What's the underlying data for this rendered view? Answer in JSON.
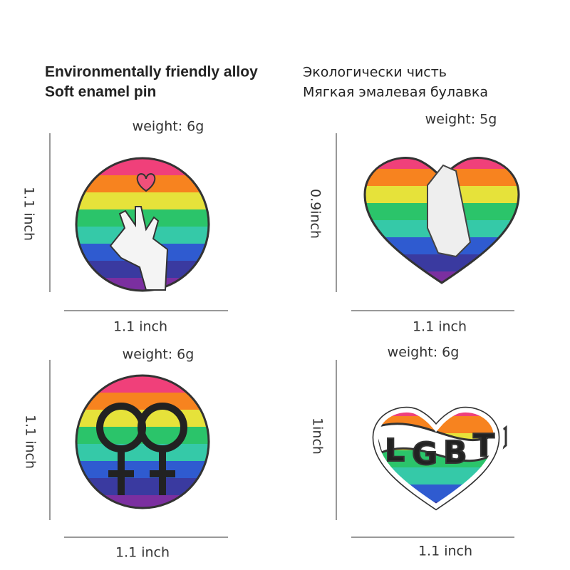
{
  "header": {
    "en": [
      "Environmentally friendly alloy",
      "Soft enamel pin"
    ],
    "ru": [
      "Экологически чисть",
      "Мягкая эмалевая булавка"
    ]
  },
  "pins": [
    {
      "weight": "weight: 6g",
      "height": "1.1 inch",
      "width": "1.1 inch"
    },
    {
      "weight": "weight: 5g",
      "height": "0.9inch",
      "width": "1.1 inch"
    },
    {
      "weight": "weight: 6g",
      "height": "1.1 inch",
      "width": "1.1 inch"
    },
    {
      "weight": "weight: 6g",
      "height": "1inch",
      "width": "1.1 inch"
    }
  ]
}
